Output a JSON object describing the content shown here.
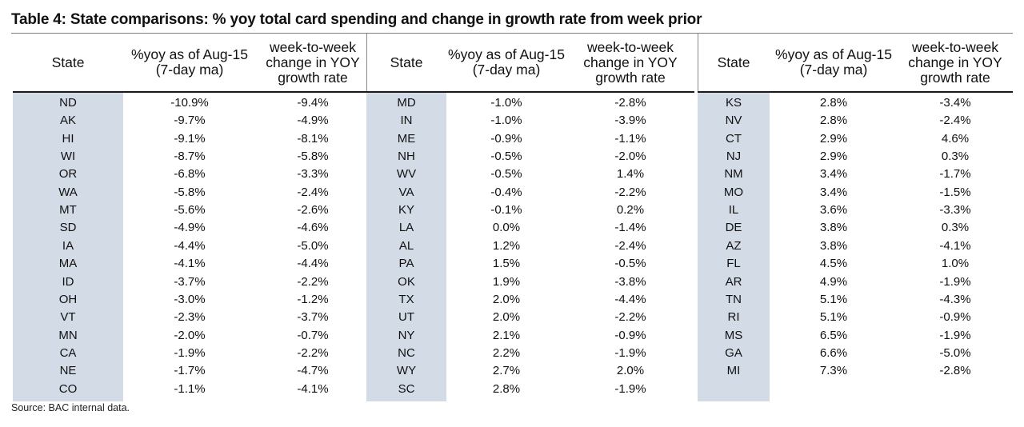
{
  "title": "Table 4: State comparisons: % yoy total card spending and change in growth rate from week prior",
  "source": "Source: BAC internal data.",
  "panels": [
    {
      "headers": [
        "State",
        "%yoy as of Aug-15 (7-day ma)",
        "week-to-week change in YOY growth rate"
      ],
      "rows": [
        [
          "ND",
          "-10.9%",
          "-9.4%"
        ],
        [
          "AK",
          "-9.7%",
          "-4.9%"
        ],
        [
          "HI",
          "-9.1%",
          "-8.1%"
        ],
        [
          "WI",
          "-8.7%",
          "-5.8%"
        ],
        [
          "OR",
          "-6.8%",
          "-3.3%"
        ],
        [
          "WA",
          "-5.8%",
          "-2.4%"
        ],
        [
          "MT",
          "-5.6%",
          "-2.6%"
        ],
        [
          "SD",
          "-4.9%",
          "-4.6%"
        ],
        [
          "IA",
          "-4.4%",
          "-5.0%"
        ],
        [
          "MA",
          "-4.1%",
          "-4.4%"
        ],
        [
          "ID",
          "-3.7%",
          "-2.2%"
        ],
        [
          "OH",
          "-3.0%",
          "-1.2%"
        ],
        [
          "VT",
          "-2.3%",
          "-3.7%"
        ],
        [
          "MN",
          "-2.0%",
          "-0.7%"
        ],
        [
          "CA",
          "-1.9%",
          "-2.2%"
        ],
        [
          "NE",
          "-1.7%",
          "-4.7%"
        ],
        [
          "CO",
          "-1.1%",
          "-4.1%"
        ]
      ]
    },
    {
      "headers": [
        "State",
        "%yoy as of Aug-15 (7-day ma)",
        "week-to-week change in YOY growth rate"
      ],
      "rows": [
        [
          "MD",
          "-1.0%",
          "-2.8%"
        ],
        [
          "IN",
          "-1.0%",
          "-3.9%"
        ],
        [
          "ME",
          "-0.9%",
          "-1.1%"
        ],
        [
          "NH",
          "-0.5%",
          "-2.0%"
        ],
        [
          "WV",
          "-0.5%",
          "1.4%"
        ],
        [
          "VA",
          "-0.4%",
          "-2.2%"
        ],
        [
          "KY",
          "-0.1%",
          "0.2%"
        ],
        [
          "LA",
          "0.0%",
          "-1.4%"
        ],
        [
          "AL",
          "1.2%",
          "-2.4%"
        ],
        [
          "PA",
          "1.5%",
          "-0.5%"
        ],
        [
          "OK",
          "1.9%",
          "-3.8%"
        ],
        [
          "TX",
          "2.0%",
          "-4.4%"
        ],
        [
          "UT",
          "2.0%",
          "-2.2%"
        ],
        [
          "NY",
          "2.1%",
          "-0.9%"
        ],
        [
          "NC",
          "2.2%",
          "-1.9%"
        ],
        [
          "WY",
          "2.7%",
          "2.0%"
        ],
        [
          "SC",
          "2.8%",
          "-1.9%"
        ]
      ]
    },
    {
      "headers": [
        "State",
        "%yoy as of Aug-15 (7-day ma)",
        "week-to-week change in YOY growth rate"
      ],
      "rows": [
        [
          "KS",
          "2.8%",
          "-3.4%"
        ],
        [
          "NV",
          "2.8%",
          "-2.4%"
        ],
        [
          "CT",
          "2.9%",
          "4.6%"
        ],
        [
          "NJ",
          "2.9%",
          "0.3%"
        ],
        [
          "NM",
          "3.4%",
          "-1.7%"
        ],
        [
          "MO",
          "3.4%",
          "-1.5%"
        ],
        [
          "IL",
          "3.6%",
          "-3.3%"
        ],
        [
          "DE",
          "3.8%",
          "0.3%"
        ],
        [
          "AZ",
          "3.8%",
          "-4.1%"
        ],
        [
          "FL",
          "4.5%",
          "1.0%"
        ],
        [
          "AR",
          "4.9%",
          "-1.9%"
        ],
        [
          "TN",
          "5.1%",
          "-4.3%"
        ],
        [
          "RI",
          "5.1%",
          "-0.9%"
        ],
        [
          "MS",
          "6.5%",
          "-1.9%"
        ],
        [
          "GA",
          "6.6%",
          "-5.0%"
        ],
        [
          "MI",
          "7.3%",
          "-2.8%"
        ]
      ]
    }
  ]
}
